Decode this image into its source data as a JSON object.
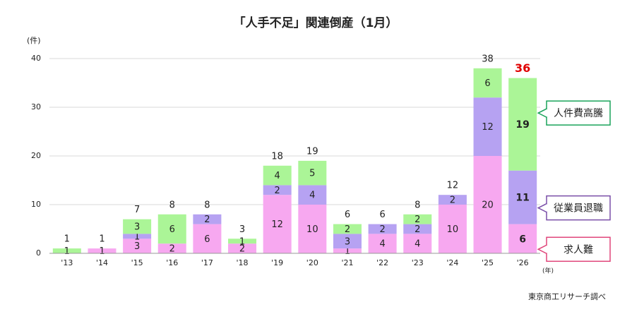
{
  "chart_data": {
    "type": "stacked_bar",
    "title": "「人手不足」関連倒産（1月）",
    "y_unit": "(件)",
    "x_unit": "(年)",
    "source": "東京商工リサーチ調べ",
    "categories": [
      "'13",
      "'14",
      "'15",
      "'16",
      "'17",
      "'18",
      "'19",
      "'20",
      "'21",
      "'22",
      "'23",
      "'24",
      "'25",
      "'26"
    ],
    "series": [
      {
        "name": "求人難",
        "color": "#f7a8f0",
        "values": [
          null,
          1,
          3,
          2,
          6,
          2,
          12,
          10,
          1,
          4,
          4,
          10,
          20,
          6
        ]
      },
      {
        "name": "従業員退職",
        "color": "#b6a2f2",
        "values": [
          null,
          null,
          1,
          null,
          2,
          null,
          2,
          4,
          3,
          2,
          2,
          2,
          12,
          11
        ]
      },
      {
        "name": "人件費高騰",
        "color": "#abf597",
        "values": [
          1,
          null,
          3,
          6,
          null,
          1,
          4,
          5,
          2,
          null,
          2,
          null,
          6,
          19
        ]
      }
    ],
    "totals": [
      1,
      1,
      7,
      8,
      8,
      3,
      18,
      19,
      6,
      6,
      8,
      12,
      38,
      36
    ],
    "last_total_color": "#e00000",
    "legend_border_colors": [
      "#e0457a",
      "#7a4fa8",
      "#1aa35a"
    ],
    "ylim": [
      0,
      40
    ],
    "yticks": [
      0,
      10,
      20,
      30,
      40
    ],
    "grid": true
  }
}
